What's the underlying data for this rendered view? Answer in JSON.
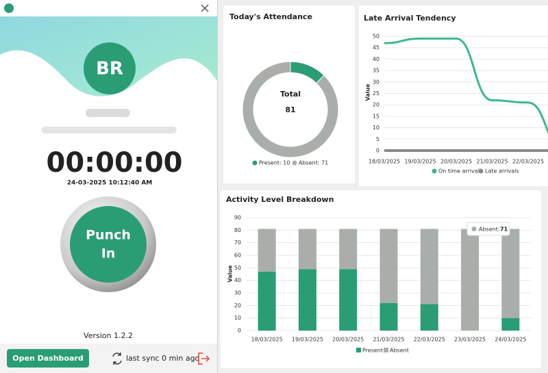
{
  "app": {
    "avatar_initials": "BR",
    "timer": "00:00:00",
    "datetime": "24-03-2025 10:12:40 AM",
    "punch_line1": "Punch",
    "punch_line2": "In",
    "version": "Version 1.2.2",
    "dashboard_button": "Open Dashboard",
    "sync_status": "last sync 0 min ago"
  },
  "chart_data": [
    {
      "type": "donut",
      "title": "Today's Attendance",
      "categories": [
        "Present",
        "Absent"
      ],
      "values": [
        10,
        71
      ],
      "colors": [
        "#2a9d74",
        "#a9aeab"
      ],
      "legend_labels": [
        "Present: 10",
        "Absent: 71"
      ],
      "center_label": "Total",
      "center_value": 81
    },
    {
      "type": "line",
      "title": "Late Arrival Tendency",
      "y_label": "Value",
      "categories": [
        "18/03/2025",
        "19/03/2025",
        "20/03/2025",
        "21/03/2025",
        "22/03/2025",
        null
      ],
      "series": [
        {
          "name": "On time arrivals",
          "color": "#3db88a",
          "values": [
            47,
            49,
            49,
            22,
            21,
            0
          ]
        },
        {
          "name": "Late arrivals",
          "color": "#8a8a8a",
          "values": [
            0,
            0,
            0,
            0,
            0,
            0
          ]
        }
      ],
      "ylim": [
        0,
        50
      ],
      "yticks": [
        0,
        5,
        10,
        15,
        20,
        25,
        30,
        35,
        40,
        45,
        50
      ],
      "grid": true
    },
    {
      "type": "bar",
      "stacked": true,
      "title": "Activity Level Breakdown",
      "y_label": "Value",
      "categories": [
        "18/03/2025",
        "19/03/2025",
        "20/03/2025",
        "21/03/2025",
        "22/03/2025",
        "23/03/2025",
        "24/03/2025"
      ],
      "series": [
        {
          "name": "Present",
          "color": "#2a9d74",
          "values": [
            47,
            49,
            49,
            22,
            21,
            0,
            10
          ]
        },
        {
          "name": "Absent",
          "color": "#a9aeab",
          "values": [
            34,
            32,
            32,
            59,
            60,
            81,
            71
          ]
        }
      ],
      "ylim": [
        0,
        90
      ],
      "yticks": [
        0,
        10,
        20,
        30,
        40,
        50,
        60,
        70,
        80,
        90
      ],
      "grid": true,
      "tooltip": {
        "name": "Absent:",
        "value": 71
      }
    }
  ]
}
